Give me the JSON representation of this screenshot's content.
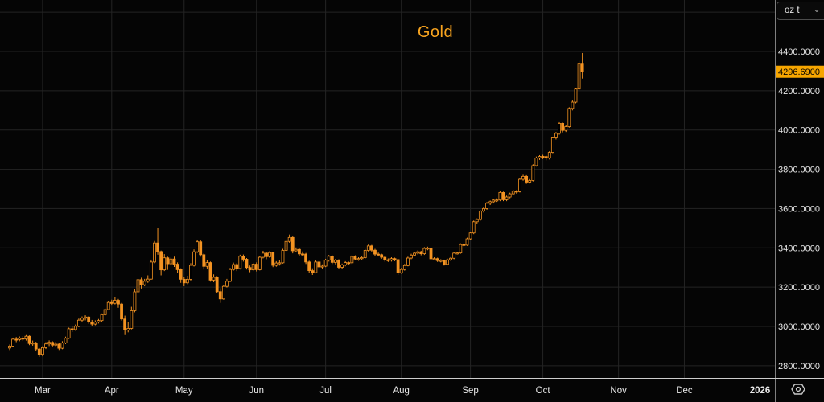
{
  "title": "Gold",
  "unit_selector": {
    "label": "oz t",
    "chevron": "⌄"
  },
  "price_tag": {
    "label": "4296.6900"
  },
  "icons": {
    "chevron_down": "⌄",
    "settings_gear": "hexagon-with-dot"
  },
  "colors": {
    "bg": "#050505",
    "candle": "#f39322",
    "accent": "#f7a600",
    "title": "#f8a41f",
    "grid": "#242424",
    "axis_text": "#e9e9e9",
    "axis_line_right": "#7f7f7f",
    "axis_line_bottom": "#cdcdcd"
  },
  "chart_data": {
    "type": "candlestick",
    "title": "Gold",
    "unit": "oz t",
    "last_close": 4296.69,
    "ylim": [
      2750,
      4660
    ],
    "grid_prices": [
      2800,
      3000,
      3200,
      3400,
      3600,
      3800,
      4000,
      4200,
      4400,
      4600
    ],
    "y_ticks": [
      {
        "v": 4400,
        "label": "4400.0000"
      },
      {
        "v": 4200,
        "label": "4200.0000"
      },
      {
        "v": 4000,
        "label": "4000.0000"
      },
      {
        "v": 3800,
        "label": "3800.0000"
      },
      {
        "v": 3600,
        "label": "3600.0000"
      },
      {
        "v": 3400,
        "label": "3400.0000"
      },
      {
        "v": 3200,
        "label": "3200.0000"
      },
      {
        "v": 3000,
        "label": "3000.0000"
      },
      {
        "v": 2800,
        "label": "2800.0000"
      }
    ],
    "x_ticks": [
      {
        "label": "Mar",
        "i": 10
      },
      {
        "label": "Apr",
        "i": 31
      },
      {
        "label": "May",
        "i": 53
      },
      {
        "label": "Jun",
        "i": 75
      },
      {
        "label": "Jul",
        "i": 96
      },
      {
        "label": "Aug",
        "i": 119
      },
      {
        "label": "Sep",
        "i": 140
      },
      {
        "label": "Oct",
        "i": 162
      },
      {
        "label": "Nov",
        "i": 185
      },
      {
        "label": "Dec",
        "i": 205
      },
      {
        "label": "2026",
        "i": 228,
        "bold": true
      }
    ],
    "candles": [
      [
        2890,
        2908,
        2880,
        2900
      ],
      [
        2900,
        2942,
        2895,
        2935
      ],
      [
        2935,
        2946,
        2920,
        2933
      ],
      [
        2933,
        2949,
        2925,
        2940
      ],
      [
        2940,
        2951,
        2926,
        2936
      ],
      [
        2936,
        2956,
        2928,
        2950
      ],
      [
        2950,
        2954,
        2905,
        2913
      ],
      [
        2913,
        2928,
        2902,
        2916
      ],
      [
        2916,
        2922,
        2875,
        2885
      ],
      [
        2885,
        2890,
        2845,
        2858
      ],
      [
        2858,
        2900,
        2848,
        2892
      ],
      [
        2892,
        2920,
        2885,
        2911
      ],
      [
        2911,
        2929,
        2900,
        2919
      ],
      [
        2919,
        2925,
        2894,
        2905
      ],
      [
        2905,
        2922,
        2898,
        2910
      ],
      [
        2910,
        2914,
        2880,
        2889
      ],
      [
        2889,
        2925,
        2884,
        2916
      ],
      [
        2916,
        2948,
        2910,
        2940
      ],
      [
        2940,
        2994,
        2936,
        2988
      ],
      [
        2988,
        3000,
        2972,
        2984
      ],
      [
        2984,
        3010,
        2978,
        3001
      ],
      [
        3001,
        3040,
        2996,
        3032
      ],
      [
        3032,
        3051,
        3024,
        3042
      ],
      [
        3042,
        3057,
        3031,
        3048
      ],
      [
        3048,
        3052,
        3014,
        3023
      ],
      [
        3023,
        3033,
        3002,
        3012
      ],
      [
        3012,
        3031,
        3006,
        3022
      ],
      [
        3022,
        3038,
        3015,
        3030
      ],
      [
        3030,
        3066,
        3025,
        3060
      ],
      [
        3060,
        3092,
        3054,
        3086
      ],
      [
        3086,
        3128,
        3082,
        3122
      ],
      [
        3122,
        3136,
        3110,
        3118
      ],
      [
        3118,
        3149,
        3112,
        3133
      ],
      [
        3133,
        3140,
        3095,
        3114
      ],
      [
        3114,
        3120,
        3030,
        3038
      ],
      [
        3038,
        3055,
        2956,
        2982
      ],
      [
        2982,
        3022,
        2970,
        2990
      ],
      [
        2990,
        3100,
        2985,
        3080
      ],
      [
        3080,
        3190,
        3072,
        3176
      ],
      [
        3176,
        3245,
        3170,
        3238
      ],
      [
        3238,
        3248,
        3193,
        3212
      ],
      [
        3212,
        3242,
        3205,
        3230
      ],
      [
        3230,
        3260,
        3222,
        3241
      ],
      [
        3241,
        3340,
        3238,
        3328
      ],
      [
        3328,
        3435,
        3322,
        3425
      ],
      [
        3425,
        3500,
        3365,
        3381
      ],
      [
        3381,
        3386,
        3260,
        3288
      ],
      [
        3288,
        3368,
        3282,
        3349
      ],
      [
        3349,
        3355,
        3288,
        3319
      ],
      [
        3319,
        3352,
        3310,
        3343
      ],
      [
        3343,
        3355,
        3303,
        3317
      ],
      [
        3317,
        3326,
        3274,
        3289
      ],
      [
        3289,
        3296,
        3222,
        3240
      ],
      [
        3240,
        3252,
        3205,
        3222
      ],
      [
        3222,
        3258,
        3215,
        3240
      ],
      [
        3240,
        3322,
        3234,
        3311
      ],
      [
        3311,
        3392,
        3305,
        3380
      ],
      [
        3380,
        3438,
        3374,
        3431
      ],
      [
        3431,
        3440,
        3355,
        3365
      ],
      [
        3365,
        3372,
        3290,
        3306
      ],
      [
        3306,
        3338,
        3295,
        3325
      ],
      [
        3325,
        3330,
        3228,
        3236
      ],
      [
        3236,
        3265,
        3225,
        3250
      ],
      [
        3250,
        3256,
        3168,
        3177
      ],
      [
        3177,
        3195,
        3120,
        3140
      ],
      [
        3140,
        3212,
        3136,
        3204
      ],
      [
        3204,
        3242,
        3198,
        3230
      ],
      [
        3230,
        3298,
        3226,
        3290
      ],
      [
        3290,
        3325,
        3284,
        3315
      ],
      [
        3315,
        3322,
        3282,
        3295
      ],
      [
        3295,
        3365,
        3290,
        3357
      ],
      [
        3357,
        3366,
        3330,
        3342
      ],
      [
        3342,
        3348,
        3290,
        3300
      ],
      [
        3300,
        3310,
        3276,
        3288
      ],
      [
        3288,
        3324,
        3282,
        3317
      ],
      [
        3317,
        3326,
        3280,
        3289
      ],
      [
        3289,
        3360,
        3285,
        3352
      ],
      [
        3352,
        3385,
        3346,
        3373
      ],
      [
        3373,
        3380,
        3342,
        3355
      ],
      [
        3355,
        3384,
        3348,
        3376
      ],
      [
        3376,
        3380,
        3302,
        3311
      ],
      [
        3311,
        3332,
        3304,
        3323
      ],
      [
        3323,
        3336,
        3310,
        3324
      ],
      [
        3324,
        3395,
        3320,
        3387
      ],
      [
        3387,
        3444,
        3382,
        3433
      ],
      [
        3433,
        3468,
        3426,
        3453
      ],
      [
        3453,
        3458,
        3372,
        3385
      ],
      [
        3385,
        3402,
        3378,
        3392
      ],
      [
        3392,
        3398,
        3358,
        3369
      ],
      [
        3369,
        3382,
        3360,
        3368
      ],
      [
        3368,
        3374,
        3318,
        3328
      ],
      [
        3328,
        3334,
        3272,
        3284
      ],
      [
        3284,
        3296,
        3262,
        3274
      ],
      [
        3274,
        3336,
        3270,
        3328
      ],
      [
        3328,
        3334,
        3294,
        3303
      ],
      [
        3303,
        3316,
        3295,
        3307
      ],
      [
        3307,
        3344,
        3302,
        3338
      ],
      [
        3338,
        3364,
        3330,
        3357
      ],
      [
        3357,
        3362,
        3318,
        3326
      ],
      [
        3326,
        3344,
        3316,
        3337
      ],
      [
        3337,
        3342,
        3294,
        3301
      ],
      [
        3301,
        3320,
        3294,
        3313
      ],
      [
        3313,
        3332,
        3306,
        3325
      ],
      [
        3325,
        3330,
        3312,
        3324
      ],
      [
        3324,
        3362,
        3318,
        3356
      ],
      [
        3356,
        3362,
        3336,
        3343
      ],
      [
        3343,
        3352,
        3334,
        3345
      ],
      [
        3345,
        3356,
        3338,
        3350
      ],
      [
        3350,
        3394,
        3344,
        3387
      ],
      [
        3387,
        3418,
        3380,
        3410
      ],
      [
        3410,
        3415,
        3380,
        3388
      ],
      [
        3388,
        3395,
        3360,
        3368
      ],
      [
        3368,
        3376,
        3356,
        3365
      ],
      [
        3365,
        3370,
        3344,
        3352
      ],
      [
        3352,
        3358,
        3330,
        3339
      ],
      [
        3339,
        3346,
        3328,
        3337
      ],
      [
        3337,
        3352,
        3330,
        3345
      ],
      [
        3345,
        3350,
        3332,
        3340
      ],
      [
        3340,
        3344,
        3262,
        3273
      ],
      [
        3273,
        3298,
        3268,
        3290
      ],
      [
        3290,
        3318,
        3284,
        3310
      ],
      [
        3310,
        3355,
        3306,
        3348
      ],
      [
        3348,
        3370,
        3342,
        3363
      ],
      [
        3363,
        3380,
        3356,
        3373
      ],
      [
        3373,
        3387,
        3366,
        3380
      ],
      [
        3380,
        3385,
        3362,
        3370
      ],
      [
        3370,
        3404,
        3364,
        3397
      ],
      [
        3397,
        3406,
        3388,
        3399
      ],
      [
        3399,
        3402,
        3338,
        3344
      ],
      [
        3344,
        3352,
        3336,
        3345
      ],
      [
        3345,
        3350,
        3328,
        3335
      ],
      [
        3335,
        3342,
        3326,
        3336
      ],
      [
        3336,
        3340,
        3310,
        3316
      ],
      [
        3316,
        3345,
        3312,
        3339
      ],
      [
        3339,
        3353,
        3333,
        3347
      ],
      [
        3347,
        3378,
        3342,
        3373
      ],
      [
        3373,
        3380,
        3366,
        3374
      ],
      [
        3374,
        3423,
        3370,
        3417
      ],
      [
        3417,
        3424,
        3406,
        3414
      ],
      [
        3414,
        3452,
        3410,
        3446
      ],
      [
        3446,
        3482,
        3440,
        3476
      ],
      [
        3476,
        3539,
        3470,
        3533
      ],
      [
        3533,
        3550,
        3524,
        3544
      ],
      [
        3544,
        3592,
        3538,
        3587
      ],
      [
        3587,
        3607,
        3580,
        3600
      ],
      [
        3600,
        3634,
        3594,
        3627
      ],
      [
        3627,
        3641,
        3618,
        3635
      ],
      [
        3635,
        3650,
        3626,
        3643
      ],
      [
        3643,
        3652,
        3634,
        3644
      ],
      [
        3644,
        3688,
        3638,
        3682
      ],
      [
        3682,
        3686,
        3638,
        3645
      ],
      [
        3645,
        3666,
        3638,
        3659
      ],
      [
        3659,
        3681,
        3652,
        3675
      ],
      [
        3675,
        3695,
        3668,
        3689
      ],
      [
        3689,
        3694,
        3676,
        3686
      ],
      [
        3686,
        3755,
        3682,
        3749
      ],
      [
        3749,
        3772,
        3742,
        3764
      ],
      [
        3764,
        3770,
        3726,
        3735
      ],
      [
        3735,
        3750,
        3728,
        3743
      ],
      [
        3743,
        3826,
        3738,
        3819
      ],
      [
        3819,
        3865,
        3814,
        3858
      ],
      [
        3858,
        3872,
        3848,
        3866
      ],
      [
        3866,
        3874,
        3852,
        3865
      ],
      [
        3865,
        3870,
        3846,
        3857
      ],
      [
        3857,
        3892,
        3850,
        3886
      ],
      [
        3886,
        3966,
        3882,
        3960
      ],
      [
        3960,
        3990,
        3952,
        3983
      ],
      [
        3983,
        4040,
        3976,
        4034
      ],
      [
        4034,
        4038,
        3988,
        3998
      ],
      [
        3998,
        4025,
        3990,
        4017
      ],
      [
        4017,
        4116,
        4012,
        4110
      ],
      [
        4110,
        4150,
        4100,
        4142
      ],
      [
        4142,
        4215,
        4136,
        4209
      ],
      [
        4209,
        4352,
        4204,
        4340
      ],
      [
        4340,
        4392,
        4262,
        4296.69
      ]
    ]
  }
}
